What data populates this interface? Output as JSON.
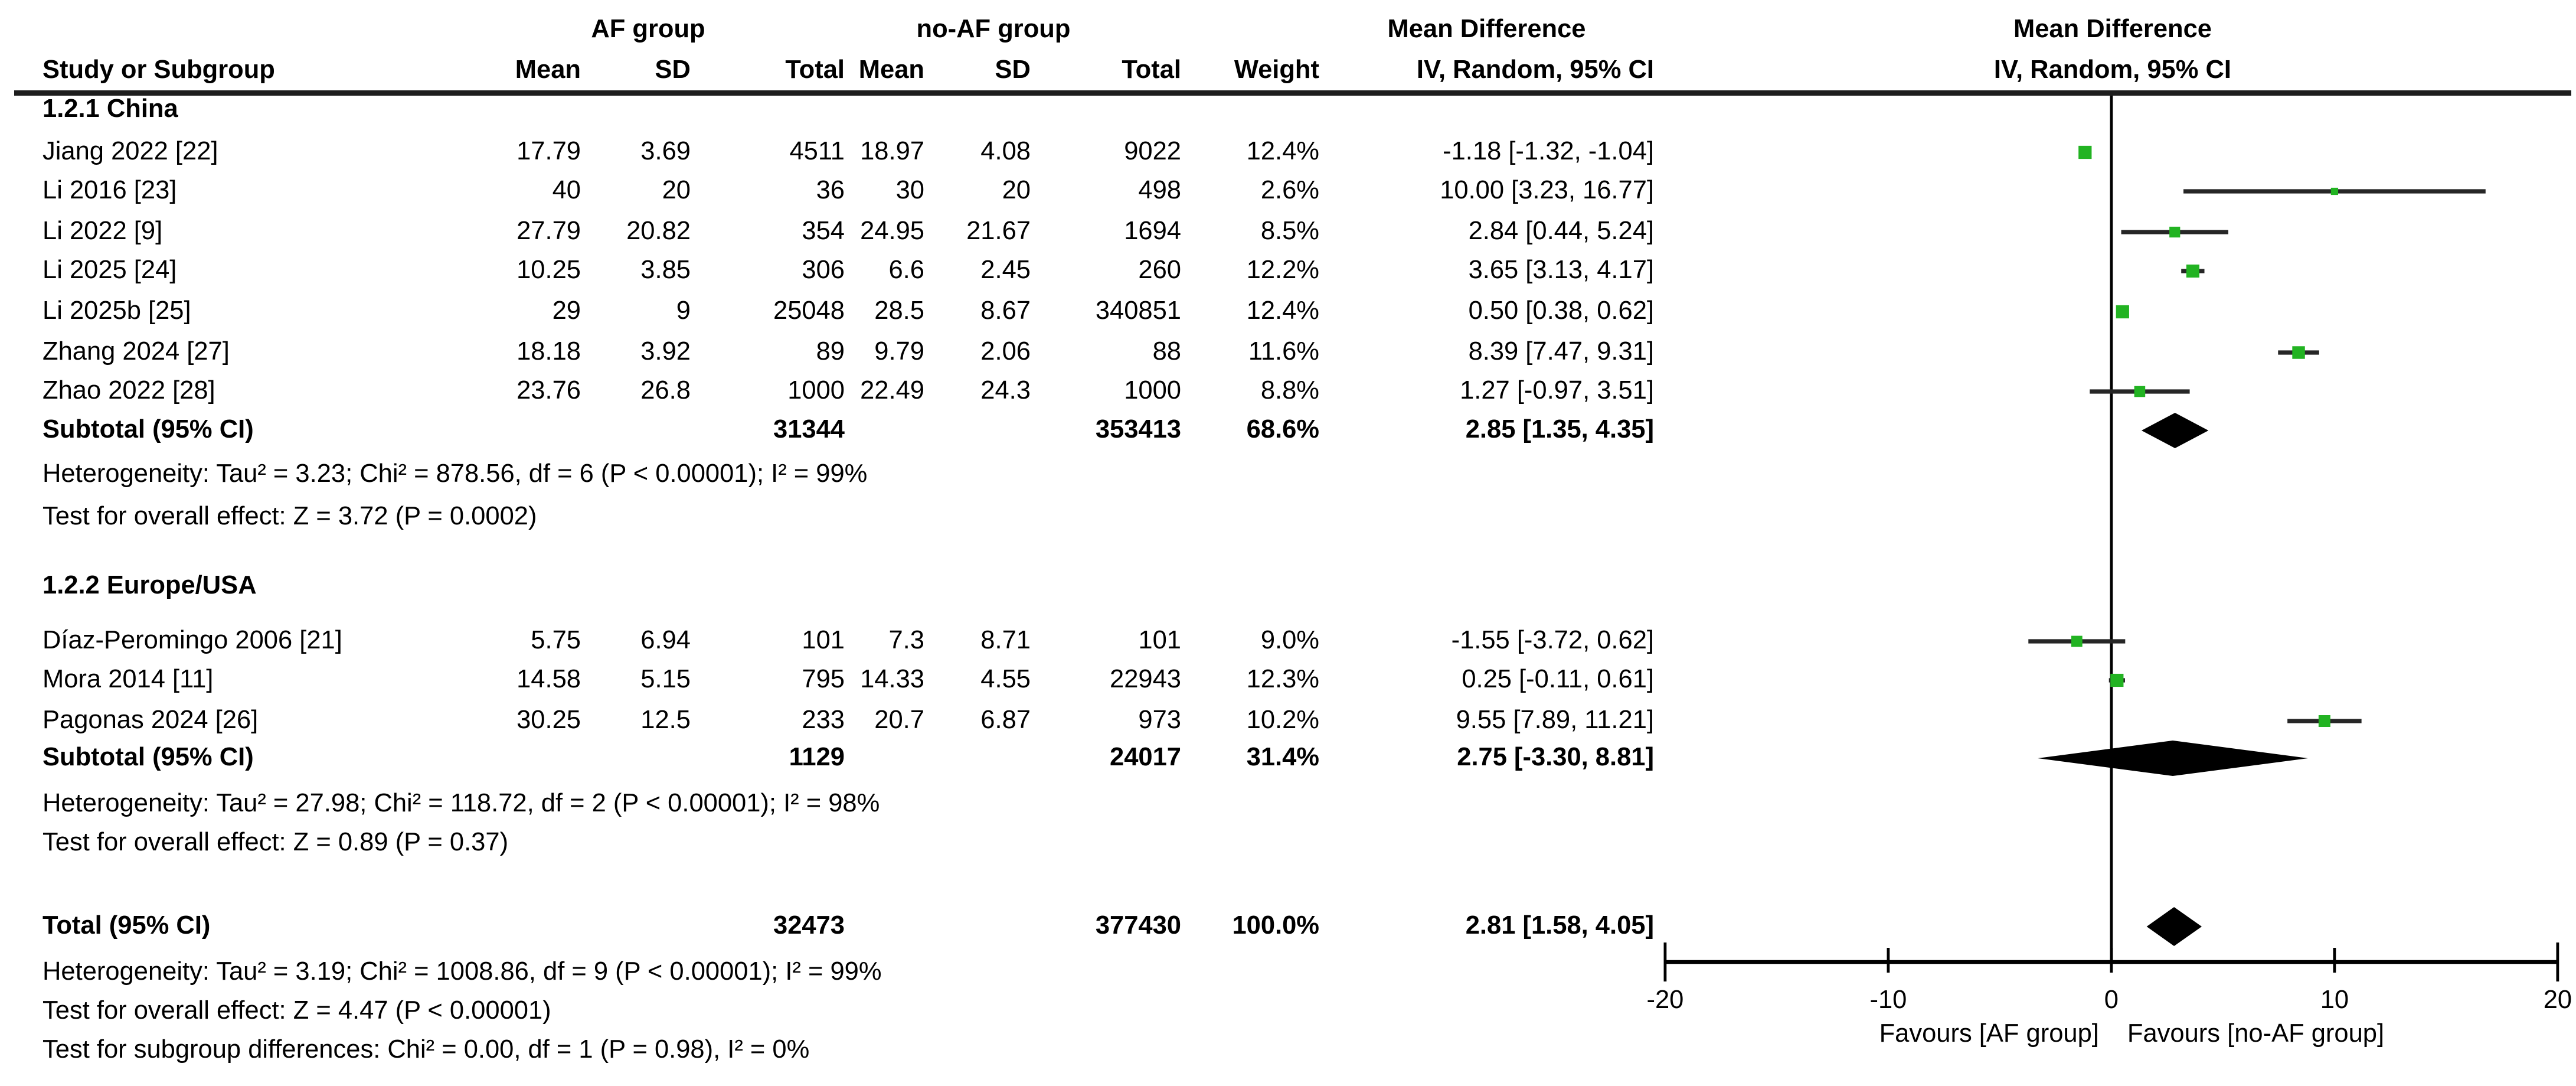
{
  "header": {
    "study_col": "Study or Subgroup",
    "af_group": "AF group",
    "noaf_group": "no-AF group",
    "mean": "Mean",
    "sd": "SD",
    "total": "Total",
    "weight": "Weight",
    "md_col_title": "Mean Difference",
    "md_col_sub": "IV, Random, 95% CI",
    "plot_title": "Mean Difference",
    "plot_sub": "IV, Random, 95% CI"
  },
  "sections": [
    {
      "label": "1.2.1 China",
      "studies": [
        {
          "name": "Jiang 2022 [22]",
          "af_mean": "17.79",
          "af_sd": "3.69",
          "af_total": "4511",
          "noaf_mean": "18.97",
          "noaf_sd": "4.08",
          "noaf_total": "9022",
          "weight": "12.4%",
          "ci_text": "-1.18 [-1.32, -1.04]",
          "md": -1.18,
          "lo": -1.32,
          "hi": -1.04,
          "w": 12.4
        },
        {
          "name": "Li 2016 [23]",
          "af_mean": "40",
          "af_sd": "20",
          "af_total": "36",
          "noaf_mean": "30",
          "noaf_sd": "20",
          "noaf_total": "498",
          "weight": "2.6%",
          "ci_text": "10.00 [3.23, 16.77]",
          "md": 10.0,
          "lo": 3.23,
          "hi": 16.77,
          "w": 2.6
        },
        {
          "name": "Li 2022 [9]",
          "af_mean": "27.79",
          "af_sd": "20.82",
          "af_total": "354",
          "noaf_mean": "24.95",
          "noaf_sd": "21.67",
          "noaf_total": "1694",
          "weight": "8.5%",
          "ci_text": "2.84 [0.44, 5.24]",
          "md": 2.84,
          "lo": 0.44,
          "hi": 5.24,
          "w": 8.5
        },
        {
          "name": "Li 2025 [24]",
          "af_mean": "10.25",
          "af_sd": "3.85",
          "af_total": "306",
          "noaf_mean": "6.6",
          "noaf_sd": "2.45",
          "noaf_total": "260",
          "weight": "12.2%",
          "ci_text": "3.65 [3.13, 4.17]",
          "md": 3.65,
          "lo": 3.13,
          "hi": 4.17,
          "w": 12.2
        },
        {
          "name": "Li 2025b [25]",
          "af_mean": "29",
          "af_sd": "9",
          "af_total": "25048",
          "noaf_mean": "28.5",
          "noaf_sd": "8.67",
          "noaf_total": "340851",
          "weight": "12.4%",
          "ci_text": "0.50 [0.38, 0.62]",
          "md": 0.5,
          "lo": 0.38,
          "hi": 0.62,
          "w": 12.4
        },
        {
          "name": "Zhang 2024 [27]",
          "af_mean": "18.18",
          "af_sd": "3.92",
          "af_total": "89",
          "noaf_mean": "9.79",
          "noaf_sd": "2.06",
          "noaf_total": "88",
          "weight": "11.6%",
          "ci_text": "8.39 [7.47, 9.31]",
          "md": 8.39,
          "lo": 7.47,
          "hi": 9.31,
          "w": 11.6
        },
        {
          "name": "Zhao 2022 [28]",
          "af_mean": "23.76",
          "af_sd": "26.8",
          "af_total": "1000",
          "noaf_mean": "22.49",
          "noaf_sd": "24.3",
          "noaf_total": "1000",
          "weight": "8.8%",
          "ci_text": "1.27 [-0.97, 3.51]",
          "md": 1.27,
          "lo": -0.97,
          "hi": 3.51,
          "w": 8.8
        }
      ],
      "subtotal": {
        "label": "Subtotal (95% CI)",
        "af_total": "31344",
        "noaf_total": "353413",
        "weight": "68.6%",
        "ci_text": "2.85 [1.35, 4.35]",
        "md": 2.85,
        "lo": 1.35,
        "hi": 4.35
      },
      "heterogeneity": "Heterogeneity: Tau² = 3.23; Chi² = 878.56, df = 6 (P < 0.00001); I² = 99%",
      "overall_effect": "Test for overall effect: Z = 3.72 (P = 0.0002)"
    },
    {
      "label": "1.2.2 Europe/USA",
      "studies": [
        {
          "name": "Díaz-Peromingo 2006 [21]",
          "af_mean": "5.75",
          "af_sd": "6.94",
          "af_total": "101",
          "noaf_mean": "7.3",
          "noaf_sd": "8.71",
          "noaf_total": "101",
          "weight": "9.0%",
          "ci_text": "-1.55 [-3.72, 0.62]",
          "md": -1.55,
          "lo": -3.72,
          "hi": 0.62,
          "w": 9.0
        },
        {
          "name": "Mora 2014 [11]",
          "af_mean": "14.58",
          "af_sd": "5.15",
          "af_total": "795",
          "noaf_mean": "14.33",
          "noaf_sd": "4.55",
          "noaf_total": "22943",
          "weight": "12.3%",
          "ci_text": "0.25 [-0.11, 0.61]",
          "md": 0.25,
          "lo": -0.11,
          "hi": 0.61,
          "w": 12.3
        },
        {
          "name": "Pagonas 2024 [26]",
          "af_mean": "30.25",
          "af_sd": "12.5",
          "af_total": "233",
          "noaf_mean": "20.7",
          "noaf_sd": "6.87",
          "noaf_total": "973",
          "weight": "10.2%",
          "ci_text": "9.55 [7.89, 11.21]",
          "md": 9.55,
          "lo": 7.89,
          "hi": 11.21,
          "w": 10.2
        }
      ],
      "subtotal": {
        "label": "Subtotal (95% CI)",
        "af_total": "1129",
        "noaf_total": "24017",
        "weight": "31.4%",
        "ci_text": "2.75 [-3.30, 8.81]",
        "md": 2.75,
        "lo": -3.3,
        "hi": 8.81
      },
      "heterogeneity": "Heterogeneity: Tau² = 27.98; Chi² = 118.72, df = 2 (P < 0.00001); I² = 98%",
      "overall_effect": "Test for overall effect: Z = 0.89 (P = 0.37)"
    }
  ],
  "total": {
    "label": "Total (95% CI)",
    "af_total": "32473",
    "noaf_total": "377430",
    "weight": "100.0%",
    "ci_text": "2.81 [1.58, 4.05]",
    "md": 2.81,
    "lo": 1.58,
    "hi": 4.05,
    "heterogeneity": "Heterogeneity: Tau² = 3.19; Chi² = 1008.86, df = 9 (P < 0.00001); I² = 99%",
    "overall_effect": "Test for overall effect: Z = 4.47 (P < 0.00001)",
    "subgroup_diff": "Test for subgroup differences: Chi² = 0.00, df = 1 (P = 0.98), I² = 0%"
  },
  "axis": {
    "min": -20,
    "max": 20,
    "ticks": [
      "-20",
      "-10",
      "0",
      "10",
      "20"
    ],
    "tick_values": [
      -20,
      -10,
      0,
      10,
      20
    ],
    "favours_left": "Favours [AF group]",
    "favours_right": "Favours [no-AF group]"
  },
  "colors": {
    "marker_green": "#22b322",
    "ci_line": "#262626",
    "diamond": "#000000"
  },
  "chart_data": {
    "type": "scatter",
    "title": "Mean Difference — IV, Random, 95% CI (forest plot)",
    "xlabel": "Mean Difference",
    "xlim": [
      -20,
      20
    ],
    "x_ticks": [
      -20,
      -10,
      0,
      10,
      20
    ],
    "legend_left": "Favours [AF group]",
    "legend_right": "Favours [no-AF group]",
    "points": [
      {
        "study": "Jiang 2022 [22]",
        "md": -1.18,
        "ci": [
          -1.32,
          -1.04
        ],
        "weight_pct": 12.4
      },
      {
        "study": "Li 2016 [23]",
        "md": 10.0,
        "ci": [
          3.23,
          16.77
        ],
        "weight_pct": 2.6
      },
      {
        "study": "Li 2022 [9]",
        "md": 2.84,
        "ci": [
          0.44,
          5.24
        ],
        "weight_pct": 8.5
      },
      {
        "study": "Li 2025 [24]",
        "md": 3.65,
        "ci": [
          3.13,
          4.17
        ],
        "weight_pct": 12.2
      },
      {
        "study": "Li 2025b [25]",
        "md": 0.5,
        "ci": [
          0.38,
          0.62
        ],
        "weight_pct": 12.4
      },
      {
        "study": "Zhang 2024 [27]",
        "md": 8.39,
        "ci": [
          7.47,
          9.31
        ],
        "weight_pct": 11.6
      },
      {
        "study": "Zhao 2022 [28]",
        "md": 1.27,
        "ci": [
          -0.97,
          3.51
        ],
        "weight_pct": 8.8
      },
      {
        "study": "Díaz-Peromingo 2006 [21]",
        "md": -1.55,
        "ci": [
          -3.72,
          0.62
        ],
        "weight_pct": 9.0
      },
      {
        "study": "Mora 2014 [11]",
        "md": 0.25,
        "ci": [
          -0.11,
          0.61
        ],
        "weight_pct": 12.3
      },
      {
        "study": "Pagonas 2024 [26]",
        "md": 9.55,
        "ci": [
          7.89,
          11.21
        ],
        "weight_pct": 10.2
      }
    ],
    "diamonds": [
      {
        "label": "Subtotal China (95% CI)",
        "md": 2.85,
        "ci": [
          1.35,
          4.35
        ],
        "weight_pct": 68.6
      },
      {
        "label": "Subtotal Europe/USA (95% CI)",
        "md": 2.75,
        "ci": [
          -3.3,
          8.81
        ],
        "weight_pct": 31.4
      },
      {
        "label": "Total (95% CI)",
        "md": 2.81,
        "ci": [
          1.58,
          4.05
        ],
        "weight_pct": 100.0
      }
    ]
  }
}
